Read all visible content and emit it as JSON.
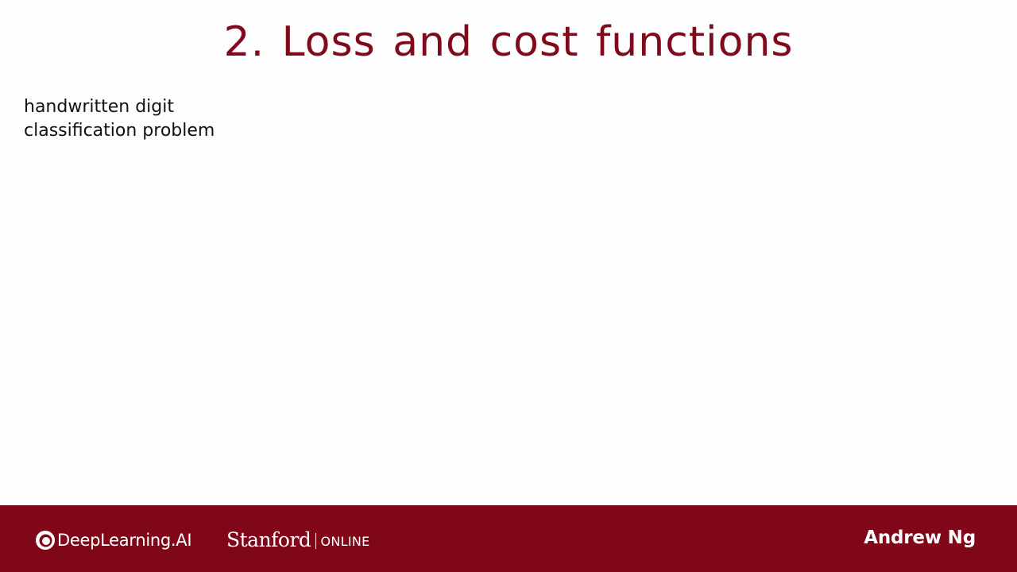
{
  "slide": {
    "title": "2. Loss and cost functions",
    "body_lines": [
      "handwritten digit",
      "classification problem"
    ]
  },
  "footer": {
    "deeplearning_logo_text": "DeepLearning.AI",
    "stanford_text": "Stanford",
    "online_text": "ONLINE",
    "author": "Andrew Ng"
  },
  "colors": {
    "title_color": "#7f0a1b",
    "footer_background": "#7f0718",
    "slide_background": "#fdfdfd"
  },
  "icons": {
    "deeplearning_logo": "deeplearning-ai-logo-icon"
  }
}
